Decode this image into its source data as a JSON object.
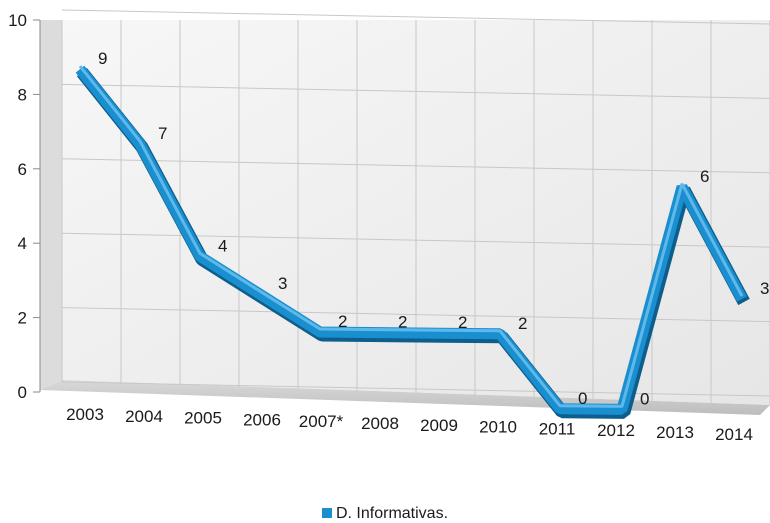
{
  "chart_data": {
    "type": "line",
    "title": "",
    "xlabel": "",
    "ylabel": "",
    "categories": [
      "2003",
      "2004",
      "2005",
      "2006",
      "2007*",
      "2008",
      "2009",
      "2010",
      "2011",
      "2012",
      "2013",
      "2014"
    ],
    "series": [
      {
        "name": "D. Informativas.",
        "values": [
          9,
          7,
          4,
          3,
          2,
          2,
          2,
          2,
          0,
          0,
          6,
          3
        ]
      }
    ],
    "ylim": [
      0,
      10
    ],
    "yticks": [
      "0",
      "2",
      "4",
      "6",
      "8",
      "10"
    ],
    "grid": true,
    "legend": "bottom",
    "colors": {
      "series": "#1a8fd0",
      "grid": "#c8c8c8",
      "wall": "#ededed"
    }
  }
}
